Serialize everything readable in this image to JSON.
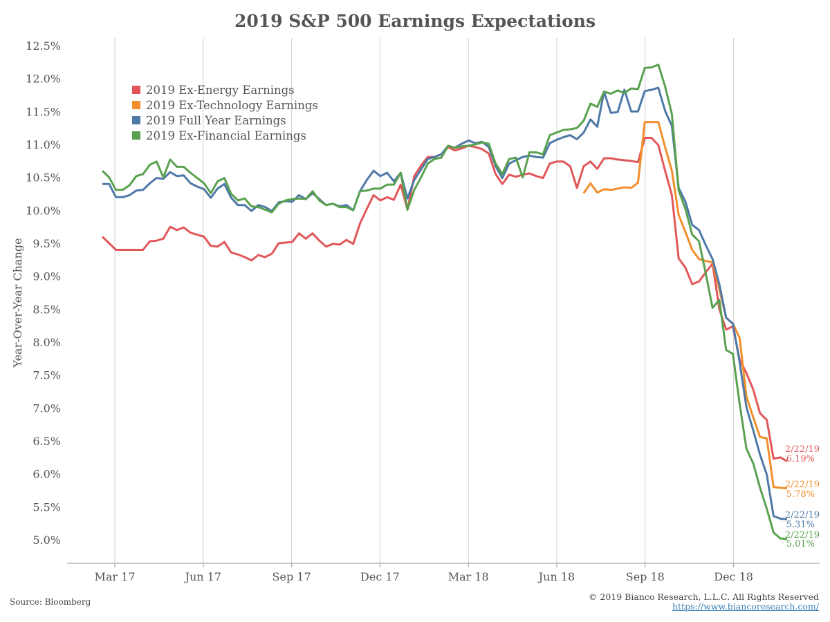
{
  "title": "2019 S&P 500 Earnings Expectations",
  "footer": {
    "source": "Source: Bloomberg",
    "copyright": "© 2019 Bianco Research, L.L.C. All Rights Reserved",
    "url": "https://www.biancoresearch.com/"
  },
  "chart_data": {
    "type": "line",
    "title": "2019 S&P 500 Earnings Expectations",
    "ylabel": "Year-Over-Year Change",
    "xlabel": "",
    "ylim": [
      4.6,
      12.6
    ],
    "y_ticks": [
      "5.0%",
      "5.5%",
      "6.0%",
      "6.5%",
      "7.0%",
      "7.5%",
      "8.0%",
      "8.5%",
      "9.0%",
      "9.5%",
      "10.0%",
      "10.5%",
      "11.0%",
      "11.5%",
      "12.0%",
      "12.5%"
    ],
    "y_tick_values": [
      5.0,
      5.5,
      6.0,
      6.5,
      7.0,
      7.5,
      8.0,
      8.5,
      9.0,
      9.5,
      10.0,
      10.5,
      11.0,
      11.5,
      12.0,
      12.5
    ],
    "x_ticks": [
      "Mar 17",
      "Jun 17",
      "Sep 17",
      "Dec 17",
      "Mar 18",
      "Jun 18",
      "Sep 18",
      "Dec 18"
    ],
    "grid": "vertical",
    "legend_position": "top-left",
    "x": [
      "2017-03-17",
      "2017-03-24",
      "2017-03-31",
      "2017-04-07",
      "2017-04-14",
      "2017-04-21",
      "2017-04-28",
      "2017-05-05",
      "2017-05-12",
      "2017-05-19",
      "2017-05-26",
      "2017-06-02",
      "2017-06-09",
      "2017-06-16",
      "2017-06-23",
      "2017-06-30",
      "2017-07-07",
      "2017-07-14",
      "2017-07-21",
      "2017-07-28",
      "2017-08-04",
      "2017-08-11",
      "2017-08-18",
      "2017-08-25",
      "2017-09-01",
      "2017-09-08",
      "2017-09-15",
      "2017-09-22",
      "2017-09-29",
      "2017-10-06",
      "2017-10-13",
      "2017-10-20",
      "2017-10-27",
      "2017-11-03",
      "2017-11-10",
      "2017-11-17",
      "2017-11-24",
      "2017-12-01",
      "2017-12-08",
      "2017-12-15",
      "2017-12-22",
      "2017-12-29",
      "2018-01-05",
      "2018-01-12",
      "2018-01-19",
      "2018-01-26",
      "2018-02-02",
      "2018-02-09",
      "2018-02-16",
      "2018-02-23",
      "2018-03-02",
      "2018-03-09",
      "2018-03-16",
      "2018-03-23",
      "2018-03-30",
      "2018-04-06",
      "2018-04-13",
      "2018-04-20",
      "2018-04-27",
      "2018-05-04",
      "2018-05-11",
      "2018-05-18",
      "2018-05-25",
      "2018-06-01",
      "2018-06-08",
      "2018-06-15",
      "2018-06-22",
      "2018-06-29",
      "2018-07-06",
      "2018-07-13",
      "2018-07-20",
      "2018-07-27",
      "2018-08-03",
      "2018-08-10",
      "2018-08-17",
      "2018-08-24",
      "2018-08-31",
      "2018-09-07",
      "2018-09-14",
      "2018-09-21",
      "2018-09-28",
      "2018-10-05",
      "2018-10-12",
      "2018-10-19",
      "2018-10-26",
      "2018-11-02",
      "2018-11-09",
      "2018-11-16",
      "2018-11-23",
      "2018-11-30",
      "2018-12-07",
      "2018-12-14",
      "2018-12-21",
      "2018-12-28",
      "2019-01-04",
      "2019-01-11",
      "2019-01-18",
      "2019-01-25",
      "2019-02-01",
      "2019-02-08",
      "2019-02-15",
      "2019-02-22"
    ],
    "series": [
      {
        "name": "2019 Ex-Energy Earnings",
        "color": "#e15759",
        "end_date_label": "2/22/19",
        "end_value_label": "6.19%",
        "values": [
          9.6,
          9.5,
          9.4,
          9.4,
          9.4,
          9.4,
          9.4,
          9.53,
          9.54,
          9.57,
          9.75,
          9.7,
          9.74,
          9.66,
          9.63,
          9.6,
          9.46,
          9.45,
          9.52,
          9.36,
          9.33,
          9.29,
          9.24,
          9.32,
          9.29,
          9.34,
          9.5,
          9.51,
          9.52,
          9.65,
          9.57,
          9.65,
          9.54,
          9.45,
          9.49,
          9.48,
          9.55,
          9.49,
          9.8,
          10.02,
          10.23,
          10.15,
          10.2,
          10.16,
          10.39,
          10.01,
          10.52,
          10.68,
          10.81,
          10.81,
          10.85,
          10.96,
          10.91,
          10.94,
          10.98,
          10.96,
          10.93,
          10.86,
          10.55,
          10.4,
          10.54,
          10.51,
          10.54,
          10.56,
          10.52,
          10.49,
          10.71,
          10.74,
          10.74,
          10.67,
          10.34,
          10.67,
          10.74,
          10.63,
          10.79,
          10.79,
          10.77,
          10.76,
          10.75,
          10.73,
          11.1,
          11.1,
          10.99,
          10.6,
          10.23,
          9.27,
          9.13,
          8.88,
          8.92,
          9.06,
          9.19,
          8.5,
          8.19,
          8.24,
          7.73,
          7.53,
          7.28,
          6.92,
          6.82,
          6.23,
          6.25,
          6.19
        ]
      },
      {
        "name": "2019 Ex-Technology Earnings",
        "color": "#f28e2b",
        "end_date_label": "2/22/19",
        "end_value_label": "5.78%",
        "values": [
          null,
          null,
          null,
          null,
          null,
          null,
          null,
          null,
          null,
          null,
          null,
          null,
          null,
          null,
          null,
          null,
          null,
          null,
          null,
          null,
          null,
          null,
          null,
          null,
          null,
          null,
          null,
          null,
          null,
          null,
          null,
          null,
          null,
          null,
          null,
          null,
          null,
          null,
          null,
          null,
          null,
          null,
          null,
          null,
          null,
          null,
          null,
          null,
          null,
          null,
          null,
          null,
          null,
          null,
          null,
          null,
          null,
          null,
          null,
          null,
          null,
          null,
          null,
          null,
          null,
          null,
          null,
          null,
          null,
          null,
          null,
          10.26,
          10.41,
          10.27,
          10.32,
          10.31,
          10.33,
          10.35,
          10.34,
          10.42,
          11.34,
          11.34,
          11.34,
          10.96,
          10.6,
          9.93,
          9.67,
          9.4,
          9.26,
          9.23,
          9.21,
          8.8,
          8.37,
          8.28,
          8.06,
          7.17,
          6.86,
          6.56,
          6.54,
          5.8,
          5.79,
          5.78
        ]
      },
      {
        "name": "2019 Full Year Earnings",
        "color": "#4e79a7",
        "end_date_label": "2/22/19",
        "end_value_label": "5.31%",
        "values": [
          10.4,
          10.4,
          10.2,
          10.2,
          10.23,
          10.3,
          10.31,
          10.41,
          10.49,
          10.48,
          10.58,
          10.52,
          10.53,
          10.41,
          10.36,
          10.32,
          10.19,
          10.33,
          10.4,
          10.19,
          10.08,
          10.08,
          9.99,
          10.08,
          10.05,
          9.99,
          10.12,
          10.14,
          10.13,
          10.23,
          10.17,
          10.26,
          10.17,
          10.08,
          10.1,
          10.06,
          10.08,
          10.0,
          10.29,
          10.46,
          10.6,
          10.52,
          10.57,
          10.44,
          10.57,
          10.18,
          10.46,
          10.62,
          10.78,
          10.81,
          10.85,
          10.98,
          10.95,
          11.01,
          11.06,
          11.02,
          11.04,
          10.96,
          10.67,
          10.49,
          10.71,
          10.76,
          10.81,
          10.83,
          10.81,
          10.8,
          11.02,
          11.07,
          11.11,
          11.14,
          11.08,
          11.18,
          11.38,
          11.27,
          11.8,
          11.48,
          11.49,
          11.83,
          11.5,
          11.5,
          11.81,
          11.83,
          11.86,
          11.51,
          11.28,
          10.34,
          10.13,
          9.78,
          9.7,
          9.47,
          9.26,
          8.88,
          8.37,
          8.28,
          7.69,
          7.01,
          6.66,
          6.29,
          5.99,
          5.36,
          5.32,
          5.31
        ]
      },
      {
        "name": "2019 Ex-Financial Earnings",
        "color": "#59a14f",
        "end_date_label": "2/22/19",
        "end_value_label": "5.01%",
        "values": [
          10.6,
          10.5,
          10.31,
          10.31,
          10.38,
          10.52,
          10.55,
          10.69,
          10.74,
          10.5,
          10.77,
          10.66,
          10.66,
          10.57,
          10.49,
          10.41,
          10.26,
          10.44,
          10.49,
          10.25,
          10.15,
          10.18,
          10.06,
          10.05,
          10.01,
          9.97,
          10.1,
          10.15,
          10.17,
          10.18,
          10.17,
          10.29,
          10.15,
          10.08,
          10.1,
          10.05,
          10.05,
          10.0,
          10.29,
          10.3,
          10.33,
          10.33,
          10.39,
          10.39,
          10.57,
          10.01,
          10.31,
          10.5,
          10.71,
          10.78,
          10.8,
          10.98,
          10.95,
          10.97,
          10.98,
          11.0,
          11.03,
          11.01,
          10.71,
          10.55,
          10.78,
          10.8,
          10.5,
          10.88,
          10.88,
          10.85,
          11.14,
          11.18,
          11.22,
          11.23,
          11.25,
          11.36,
          11.62,
          11.57,
          11.8,
          11.77,
          11.82,
          11.78,
          11.85,
          11.84,
          12.16,
          12.17,
          12.21,
          11.88,
          11.46,
          10.3,
          10.02,
          9.63,
          9.53,
          9.04,
          8.52,
          8.64,
          7.88,
          7.82,
          7.06,
          6.38,
          6.16,
          5.79,
          5.47,
          5.11,
          5.02,
          5.01
        ]
      }
    ]
  }
}
